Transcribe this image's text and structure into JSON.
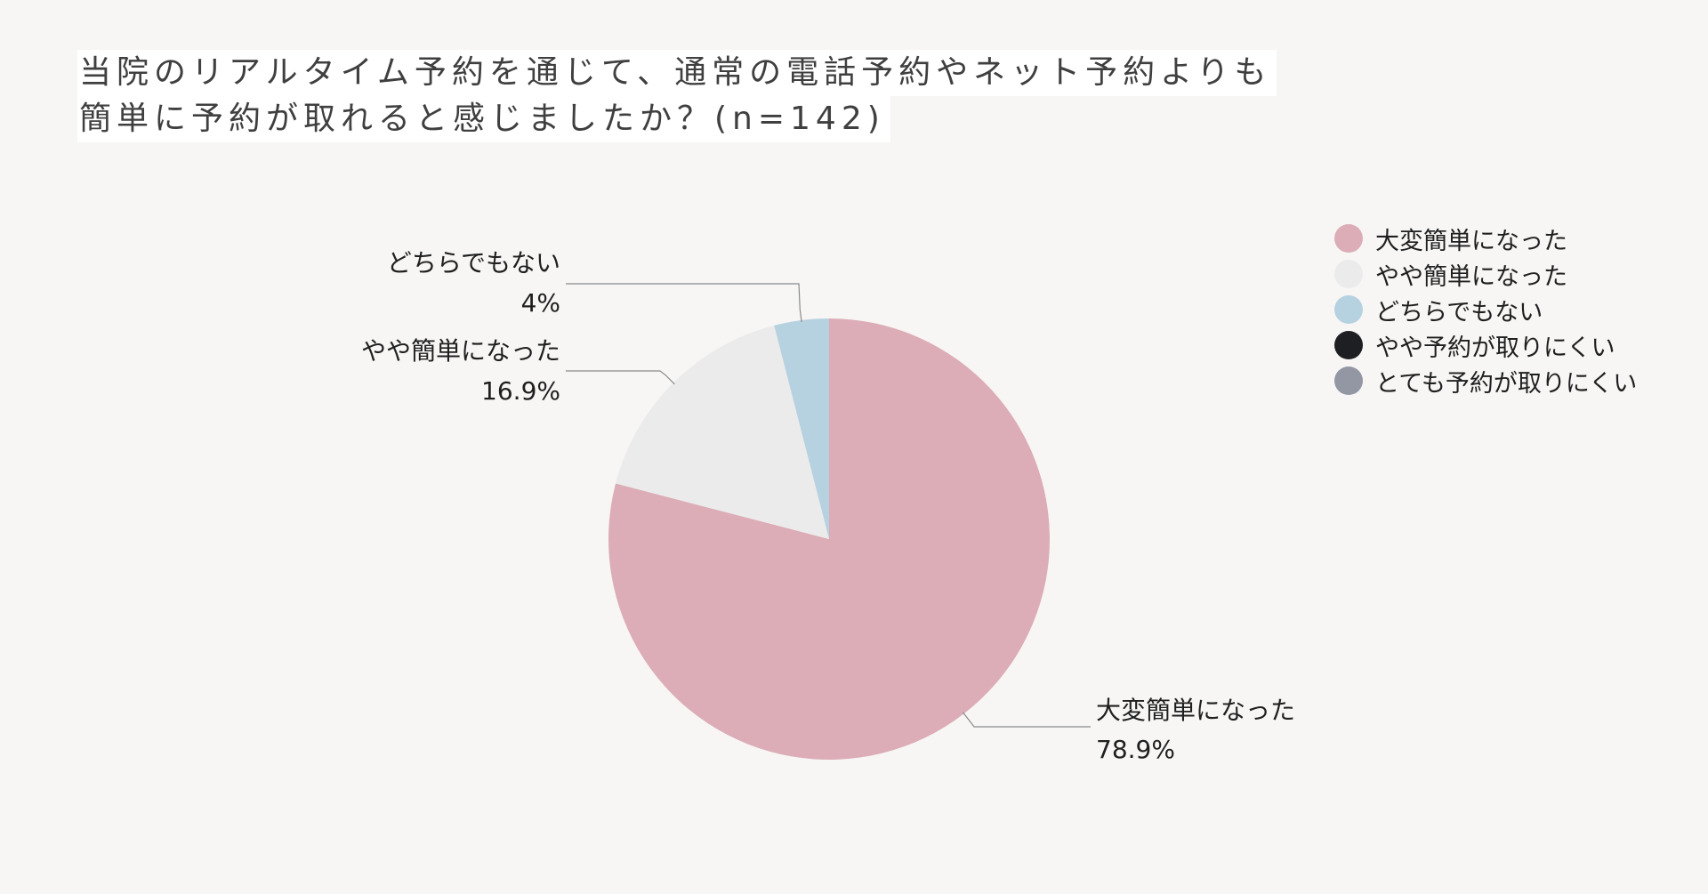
{
  "title": {
    "line1": "当院のリアルタイム予約を通じて、通常の電話予約やネット予約よりも",
    "line2": "簡単に予約が取れると感じましたか？(n=142)"
  },
  "chart_data": {
    "type": "pie",
    "title": "当院のリアルタイム予約を通じて、通常の電話予約やネット予約よりも簡単に予約が取れると感じましたか？(n=142)",
    "unit": "%",
    "start": "12 o'clock",
    "direction": "clockwise",
    "legend_position": "top-right",
    "slices": [
      {
        "label": "大変簡単になった",
        "value": 78.9,
        "value_label": "78.9%",
        "color": "#dcadb7",
        "shown": true
      },
      {
        "label": "やや簡単になった",
        "value": 16.9,
        "value_label": "16.9%",
        "color": "#ebebeb",
        "shown": true
      },
      {
        "label": "どちらでもない",
        "value": 4,
        "value_label": "4%",
        "color": "#b6d1df",
        "shown": true
      },
      {
        "label": "やや予約が取りにくい",
        "value": 0,
        "value_label": "",
        "color": "#1e1f22",
        "shown": false
      },
      {
        "label": "とても予約が取りにくい",
        "value": 0,
        "value_label": "",
        "color": "#9297a3",
        "shown": false
      }
    ]
  }
}
